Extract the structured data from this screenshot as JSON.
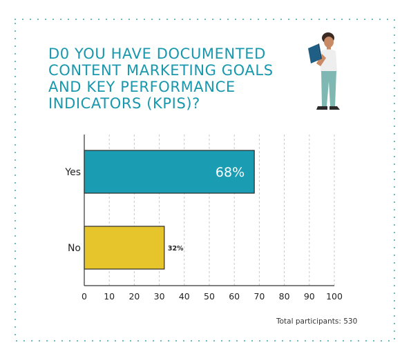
{
  "title": "D0 YOU HAVE DOCUMENTED\nCONTENT MARKETING GOALS\nAND KEY PERFORMANCE\nINDICATORS (KPIS)?",
  "footnote": "Total participants: 530",
  "colors": {
    "title": "#1897ad",
    "yes_bar": "#1a9cb2",
    "no_bar": "#e6c42c",
    "frame_dots": "#3aa6ab"
  },
  "illustration": {
    "icon": "person-reading-book-icon"
  },
  "chart_data": {
    "type": "bar",
    "orientation": "horizontal",
    "categories": [
      "Yes",
      "No"
    ],
    "values": [
      68,
      32
    ],
    "data_labels": [
      "68%",
      "32%"
    ],
    "xlim": [
      0,
      100
    ],
    "xticks": [
      0,
      10,
      20,
      30,
      40,
      50,
      60,
      70,
      80,
      90,
      100
    ],
    "grid": "vertical dashed",
    "title": "D0 YOU HAVE DOCUMENTED CONTENT MARKETING GOALS AND KEY PERFORMANCE INDICATORS (KPIS)?",
    "xlabel": "",
    "ylabel": ""
  }
}
